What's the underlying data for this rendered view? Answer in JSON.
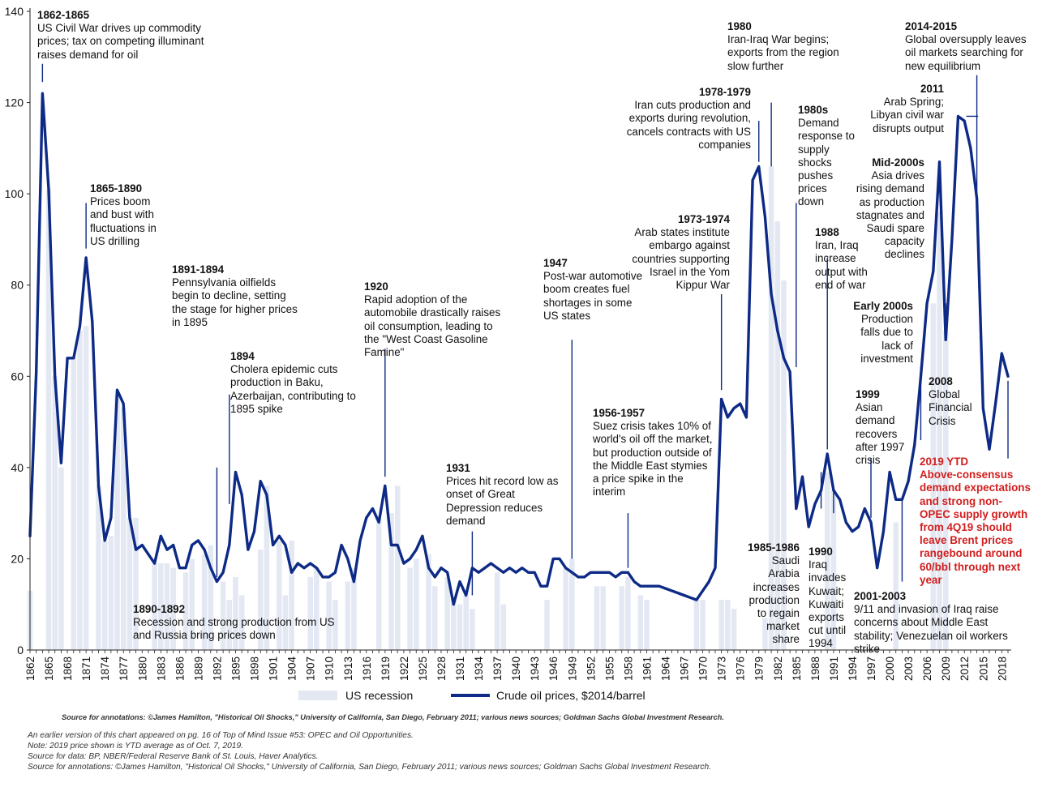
{
  "chart_data": {
    "type": "line",
    "y_axis": {
      "min": 0,
      "max": 140,
      "ticks": [
        0,
        20,
        40,
        60,
        80,
        100,
        120,
        140
      ]
    },
    "x_axis": {
      "min": 1862,
      "max": 2019,
      "tick_labels": [
        "1862",
        "1865",
        "1868",
        "1871",
        "1874",
        "1877",
        "1880",
        "1883",
        "1886",
        "1889",
        "1892",
        "1895",
        "1898",
        "1901",
        "1904",
        "1907",
        "1910",
        "1913",
        "1916",
        "1919",
        "1922",
        "1925",
        "1928",
        "1931",
        "1934",
        "1937",
        "1940",
        "1943",
        "1946",
        "1949",
        "1952",
        "1955",
        "1958",
        "1961",
        "1964",
        "1967",
        "1970",
        "1973",
        "1976",
        "1979",
        "1982",
        "1985",
        "1988",
        "1991",
        "1994",
        "1997",
        "2000",
        "2003",
        "2006",
        "2009",
        "2012",
        "2015",
        "2018"
      ]
    },
    "legend": [
      {
        "name": "US recession",
        "color": "#e3e8f3"
      },
      {
        "name": "Crude oil prices, $2014/barrel",
        "color": "#0d2a86"
      }
    ],
    "recession_bars": [
      {
        "year": 1862,
        "value": 13
      },
      {
        "year": 1865,
        "value": 101
      },
      {
        "year": 1866,
        "value": 60
      },
      {
        "year": 1867,
        "value": 40
      },
      {
        "year": 1869,
        "value": 64
      },
      {
        "year": 1870,
        "value": 70
      },
      {
        "year": 1871,
        "value": 71
      },
      {
        "year": 1873,
        "value": 36
      },
      {
        "year": 1874,
        "value": 24
      },
      {
        "year": 1875,
        "value": 25
      },
      {
        "year": 1876,
        "value": 56
      },
      {
        "year": 1877,
        "value": 53
      },
      {
        "year": 1878,
        "value": 29
      },
      {
        "year": 1879,
        "value": 29
      },
      {
        "year": 1882,
        "value": 19
      },
      {
        "year": 1883,
        "value": 19
      },
      {
        "year": 1884,
        "value": 19
      },
      {
        "year": 1885,
        "value": 18
      },
      {
        "year": 1887,
        "value": 17
      },
      {
        "year": 1888,
        "value": 20
      },
      {
        "year": 1890,
        "value": 21
      },
      {
        "year": 1891,
        "value": 23
      },
      {
        "year": 1893,
        "value": 15
      },
      {
        "year": 1894,
        "value": 11
      },
      {
        "year": 1895,
        "value": 16
      },
      {
        "year": 1896,
        "value": 12
      },
      {
        "year": 1899,
        "value": 22
      },
      {
        "year": 1900,
        "value": 36
      },
      {
        "year": 1902,
        "value": 24
      },
      {
        "year": 1903,
        "value": 12
      },
      {
        "year": 1904,
        "value": 24
      },
      {
        "year": 1907,
        "value": 16
      },
      {
        "year": 1908,
        "value": 18
      },
      {
        "year": 1910,
        "value": 15
      },
      {
        "year": 1911,
        "value": 11
      },
      {
        "year": 1913,
        "value": 15
      },
      {
        "year": 1914,
        "value": 18
      },
      {
        "year": 1918,
        "value": 29
      },
      {
        "year": 1920,
        "value": 30
      },
      {
        "year": 1921,
        "value": 36
      },
      {
        "year": 1923,
        "value": 18
      },
      {
        "year": 1924,
        "value": 20
      },
      {
        "year": 1926,
        "value": 21
      },
      {
        "year": 1927,
        "value": 14
      },
      {
        "year": 1929,
        "value": 16
      },
      {
        "year": 1930,
        "value": 11
      },
      {
        "year": 1931,
        "value": 10
      },
      {
        "year": 1932,
        "value": 12
      },
      {
        "year": 1933,
        "value": 9
      },
      {
        "year": 1937,
        "value": 17
      },
      {
        "year": 1938,
        "value": 10
      },
      {
        "year": 1945,
        "value": 11
      },
      {
        "year": 1948,
        "value": 18
      },
      {
        "year": 1949,
        "value": 20
      },
      {
        "year": 1953,
        "value": 14
      },
      {
        "year": 1954,
        "value": 14
      },
      {
        "year": 1957,
        "value": 14
      },
      {
        "year": 1958,
        "value": 16
      },
      {
        "year": 1960,
        "value": 12
      },
      {
        "year": 1961,
        "value": 11
      },
      {
        "year": 1969,
        "value": 11
      },
      {
        "year": 1970,
        "value": 11
      },
      {
        "year": 1973,
        "value": 11
      },
      {
        "year": 1974,
        "value": 11
      },
      {
        "year": 1975,
        "value": 9
      },
      {
        "year": 1980,
        "value": 7
      },
      {
        "year": 1981,
        "value": 106
      },
      {
        "year": 1982,
        "value": 94
      },
      {
        "year": 1983,
        "value": 81
      },
      {
        "year": 1990,
        "value": 39
      },
      {
        "year": 1991,
        "value": 35
      },
      {
        "year": 2001,
        "value": 28
      },
      {
        "year": 2007,
        "value": 76
      },
      {
        "year": 2008,
        "value": 96
      },
      {
        "year": 2009,
        "value": 70
      }
    ],
    "series": [
      {
        "name": "Crude oil prices, $2014/barrel",
        "color": "#0d2a86",
        "points": [
          [
            1862,
            25
          ],
          [
            1863,
            61
          ],
          [
            1864,
            122
          ],
          [
            1865,
            101
          ],
          [
            1866,
            60
          ],
          [
            1867,
            41
          ],
          [
            1868,
            64
          ],
          [
            1869,
            64
          ],
          [
            1870,
            71
          ],
          [
            1871,
            86
          ],
          [
            1872,
            72
          ],
          [
            1873,
            36
          ],
          [
            1874,
            24
          ],
          [
            1875,
            29
          ],
          [
            1876,
            57
          ],
          [
            1877,
            54
          ],
          [
            1878,
            29
          ],
          [
            1879,
            22
          ],
          [
            1880,
            23
          ],
          [
            1881,
            21
          ],
          [
            1882,
            19
          ],
          [
            1883,
            25
          ],
          [
            1884,
            22
          ],
          [
            1885,
            23
          ],
          [
            1886,
            18
          ],
          [
            1887,
            18
          ],
          [
            1888,
            23
          ],
          [
            1889,
            24
          ],
          [
            1890,
            22
          ],
          [
            1891,
            18
          ],
          [
            1892,
            15
          ],
          [
            1893,
            17
          ],
          [
            1894,
            23
          ],
          [
            1895,
            39
          ],
          [
            1896,
            34
          ],
          [
            1897,
            22
          ],
          [
            1898,
            26
          ],
          [
            1899,
            37
          ],
          [
            1900,
            34
          ],
          [
            1901,
            23
          ],
          [
            1902,
            25
          ],
          [
            1903,
            23
          ],
          [
            1904,
            17
          ],
          [
            1905,
            19
          ],
          [
            1906,
            18
          ],
          [
            1907,
            19
          ],
          [
            1908,
            18
          ],
          [
            1909,
            16
          ],
          [
            1910,
            16
          ],
          [
            1911,
            17
          ],
          [
            1912,
            23
          ],
          [
            1913,
            20
          ],
          [
            1914,
            15
          ],
          [
            1915,
            24
          ],
          [
            1916,
            29
          ],
          [
            1917,
            31
          ],
          [
            1918,
            28
          ],
          [
            1919,
            36
          ],
          [
            1920,
            23
          ],
          [
            1921,
            23
          ],
          [
            1922,
            19
          ],
          [
            1923,
            20
          ],
          [
            1924,
            22
          ],
          [
            1925,
            25
          ],
          [
            1926,
            18
          ],
          [
            1927,
            16
          ],
          [
            1928,
            18
          ],
          [
            1929,
            17
          ],
          [
            1930,
            10
          ],
          [
            1931,
            15
          ],
          [
            1932,
            12
          ],
          [
            1933,
            18
          ],
          [
            1934,
            17
          ],
          [
            1935,
            18
          ],
          [
            1936,
            19
          ],
          [
            1937,
            18
          ],
          [
            1938,
            17
          ],
          [
            1939,
            18
          ],
          [
            1940,
            17
          ],
          [
            1941,
            18
          ],
          [
            1942,
            17
          ],
          [
            1943,
            17
          ],
          [
            1944,
            14
          ],
          [
            1945,
            14
          ],
          [
            1946,
            20
          ],
          [
            1947,
            20
          ],
          [
            1948,
            18
          ],
          [
            1949,
            17
          ],
          [
            1950,
            16
          ],
          [
            1951,
            16
          ],
          [
            1952,
            17
          ],
          [
            1953,
            17
          ],
          [
            1954,
            17
          ],
          [
            1955,
            17
          ],
          [
            1956,
            16
          ],
          [
            1957,
            17
          ],
          [
            1958,
            17
          ],
          [
            1959,
            15
          ],
          [
            1960,
            14
          ],
          [
            1961,
            14
          ],
          [
            1962,
            14
          ],
          [
            1963,
            14
          ],
          [
            1964,
            13.5
          ],
          [
            1965,
            13
          ],
          [
            1966,
            12.5
          ],
          [
            1967,
            12
          ],
          [
            1968,
            11.5
          ],
          [
            1969,
            11
          ],
          [
            1970,
            13
          ],
          [
            1971,
            15
          ],
          [
            1972,
            18
          ],
          [
            1973,
            55
          ],
          [
            1974,
            51
          ],
          [
            1975,
            53
          ],
          [
            1976,
            54
          ],
          [
            1977,
            51
          ],
          [
            1978,
            103
          ],
          [
            1979,
            106
          ],
          [
            1980,
            95
          ],
          [
            1981,
            78
          ],
          [
            1982,
            70
          ],
          [
            1983,
            64
          ],
          [
            1984,
            61
          ],
          [
            1985,
            31
          ],
          [
            1986,
            38
          ],
          [
            1987,
            27
          ],
          [
            1988,
            32
          ],
          [
            1989,
            35
          ],
          [
            1990,
            43
          ],
          [
            1991,
            35
          ],
          [
            1992,
            33
          ],
          [
            1993,
            28
          ],
          [
            1994,
            26
          ],
          [
            1995,
            27
          ],
          [
            1996,
            31
          ],
          [
            1997,
            28
          ],
          [
            1998,
            18
          ],
          [
            1999,
            26
          ],
          [
            2000,
            39
          ],
          [
            2001,
            33
          ],
          [
            2002,
            33
          ],
          [
            2003,
            37
          ],
          [
            2004,
            45
          ],
          [
            2005,
            60
          ],
          [
            2006,
            76
          ],
          [
            2007,
            83
          ],
          [
            2008,
            107
          ],
          [
            2009,
            68
          ],
          [
            2010,
            90
          ],
          [
            2011,
            117
          ],
          [
            2012,
            116
          ],
          [
            2013,
            110
          ],
          [
            2014,
            99
          ],
          [
            2015,
            53
          ],
          [
            2016,
            44
          ],
          [
            2017,
            54
          ],
          [
            2018,
            65
          ],
          [
            2019,
            60
          ]
        ]
      }
    ],
    "annotations": [
      {
        "id": "1862",
        "year": "1862-1865",
        "text": "US Civil War drives up commodity prices; tax on competing illuminant raises demand for oil"
      },
      {
        "id": "1865",
        "year": "1865-1890",
        "text": "Prices boom and bust with fluctuations in US drilling"
      },
      {
        "id": "1891",
        "year": "1891-1894",
        "text": "Pennsylvania oilfields begin to decline, setting the stage for higher prices in 1895"
      },
      {
        "id": "1894",
        "year": "1894",
        "text": "Cholera epidemic cuts production in Baku, Azerbaijan, contributing to 1895 spike"
      },
      {
        "id": "1890",
        "year": "1890-1892",
        "text": "Recession and strong production from US and Russia bring prices down"
      },
      {
        "id": "1920",
        "year": "1920",
        "text": "Rapid adoption of the automobile drastically raises oil consumption, leading to the \"West Coast Gasoline Famine\""
      },
      {
        "id": "1931",
        "year": "1931",
        "text": "Prices hit record low as onset of Great Depression reduces demand"
      },
      {
        "id": "1947",
        "year": "1947",
        "text": "Post-war automotive boom creates fuel shortages in some US states"
      },
      {
        "id": "1956",
        "year": "1956-1957",
        "text": "Suez crisis takes 10% of world's oil off the market, but production outside of the Middle East stymies a price spike in the interim"
      },
      {
        "id": "1973",
        "year": "1973-1974",
        "text": "Arab states institute embargo against countries supporting Israel in the Yom Kippur War"
      },
      {
        "id": "1978",
        "year": "1978-1979",
        "text": "Iran cuts production and exports during revolution, cancels contracts with US companies"
      },
      {
        "id": "1980",
        "year": "1980",
        "text": "Iran-Iraq War begins; exports from the region slow further"
      },
      {
        "id": "1980s",
        "year": "1980s",
        "text": "Demand response to supply shocks pushes prices down"
      },
      {
        "id": "1985",
        "year": "1985-1986",
        "text": "Saudi Arabia increases production to regain market share"
      },
      {
        "id": "1988",
        "year": "1988",
        "text": "Iran, Iraq increase output with end of war"
      },
      {
        "id": "1990",
        "year": "1990",
        "text": "Iraq invades Kuwait; Kuwaiti exports cut until 1994"
      },
      {
        "id": "early2000s",
        "year": "Early 2000s",
        "text": "Production falls due to lack of investment"
      },
      {
        "id": "1999",
        "year": "1999",
        "text": "Asian demand recovers after 1997 crisis"
      },
      {
        "id": "2001",
        "year": "2001-2003",
        "text": "9/11 and invasion of Iraq raise concerns about Middle East stability; Venezuelan oil workers strike"
      },
      {
        "id": "mid2000s",
        "year": "Mid-2000s",
        "text": "Asia drives rising demand as production stagnates and Saudi spare capacity declines"
      },
      {
        "id": "2008",
        "year": "2008",
        "text": "Global Financial Crisis"
      },
      {
        "id": "2011",
        "year": "2011",
        "text": "Arab Spring; Libyan civil war disrupts output"
      },
      {
        "id": "2014",
        "year": "2014-2015",
        "text": "Global oversupply leaves oil markets searching for new equilibrium"
      },
      {
        "id": "2019",
        "year": "2019 YTD",
        "text": "Above-consensus demand expectations and strong non-OPEC supply growth from 4Q19 should leave Brent prices rangebound around 60/bbl through next year"
      }
    ]
  },
  "footnotes": {
    "source_inline": "Source for annotations: ©James Hamilton, \"Historical Oil Shocks,\" University of California, San Diego, February 2011; various news sources; Goldman Sachs Global Investment Research.",
    "lines": [
      "An earlier version of this chart appeared on pg. 16 of Top of Mind Issue #53: OPEC and Oil Opportunities.",
      "Note: 2019 price shown is YTD average as of Oct. 7, 2019.",
      "Source for data: BP, NBER/Federal Reserve Bank of St. Louis, Haver Analytics.",
      "Source for annotations: ©James Hamilton, \"Historical Oil Shocks,\" University of California, San Diego, February 2011; various news sources; Goldman Sachs Global Investment Research."
    ]
  }
}
